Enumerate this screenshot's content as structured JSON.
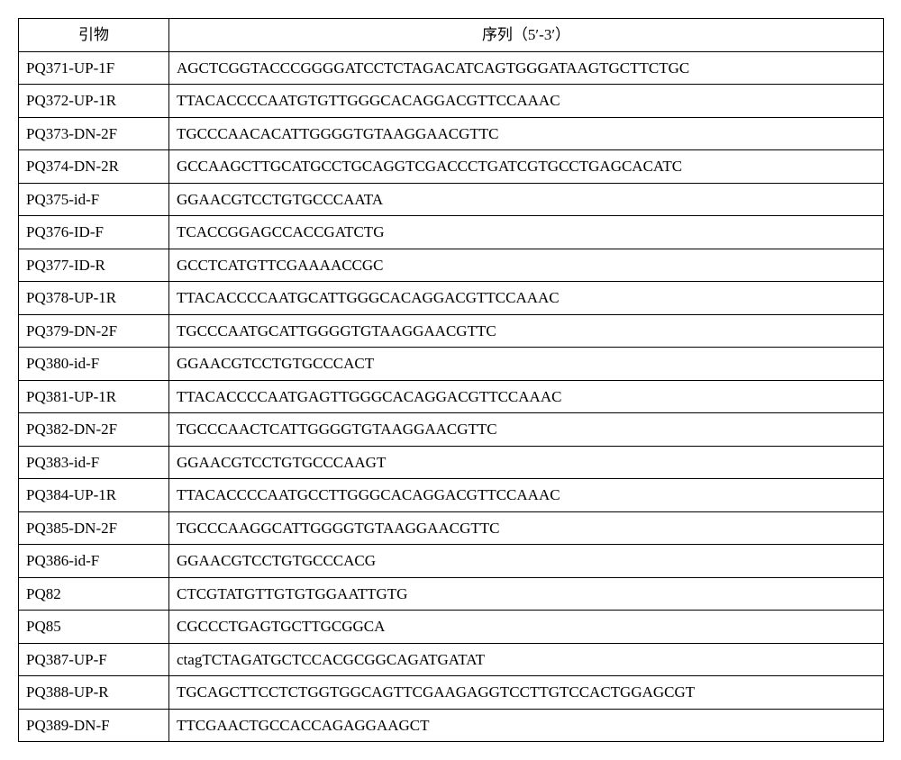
{
  "header": {
    "primerLabel": "引物",
    "sequenceLabel": "序列（5′-3′）"
  },
  "rows": [
    {
      "primer": "PQ371-UP-1F",
      "sequence": "AGCTCGGTACCCGGGGATCCTCTAGACATCAGTGGGATAAGTGCTTCTGC"
    },
    {
      "primer": "PQ372-UP-1R",
      "sequence": "TTACACCCCAATGTGTTGGGCACAGGACGTTCCAAAC"
    },
    {
      "primer": "PQ373-DN-2F",
      "sequence": "TGCCCAACACATTGGGGTGTAAGGAACGTTC"
    },
    {
      "primer": "PQ374-DN-2R",
      "sequence": "GCCAAGCTTGCATGCCTGCAGGTCGACCCTGATCGTGCCTGAGCACATC"
    },
    {
      "primer": "PQ375-id-F",
      "sequence": "GGAACGTCCTGTGCCCAATA"
    },
    {
      "primer": "PQ376-ID-F",
      "sequence": "TCACCGGAGCCACCGATCTG"
    },
    {
      "primer": "PQ377-ID-R",
      "sequence": "GCCTCATGTTCGAAAACCGC"
    },
    {
      "primer": "PQ378-UP-1R",
      "sequence": "TTACACCCCAATGCATTGGGCACAGGACGTTCCAAAC"
    },
    {
      "primer": "PQ379-DN-2F",
      "sequence": "TGCCCAATGCATTGGGGTGTAAGGAACGTTC"
    },
    {
      "primer": "PQ380-id-F",
      "sequence": "GGAACGTCCTGTGCCCACT"
    },
    {
      "primer": "PQ381-UP-1R",
      "sequence": "TTACACCCCAATGAGTTGGGCACAGGACGTTCCAAAC"
    },
    {
      "primer": "PQ382-DN-2F",
      "sequence": "TGCCCAACTCATTGGGGTGTAAGGAACGTTC"
    },
    {
      "primer": "PQ383-id-F",
      "sequence": "GGAACGTCCTGTGCCCAAGT"
    },
    {
      "primer": "PQ384-UP-1R",
      "sequence": "TTACACCCCAATGCCTTGGGCACAGGACGTTCCAAAC"
    },
    {
      "primer": "PQ385-DN-2F",
      "sequence": "TGCCCAAGGCATTGGGGTGTAAGGAACGTTC"
    },
    {
      "primer": "PQ386-id-F",
      "sequence": "GGAACGTCCTGTGCCCACG"
    },
    {
      "primer": "PQ82",
      "sequence": "CTCGTATGTTGTGTGGAATTGTG"
    },
    {
      "primer": "PQ85",
      "sequence": "CGCCCTGAGTGCTTGCGGCA"
    },
    {
      "primer": "PQ387-UP-F",
      "sequence": "ctagTCTAGATGCTCCACGCGGCAGATGATAT"
    },
    {
      "primer": "PQ388-UP-R",
      "sequence": "TGCAGCTTCCTCTGGTGGCAGTTCGAAGAGGTCCTTGTCCACTGGAGCGT"
    },
    {
      "primer": "PQ389-DN-F",
      "sequence": "TTCGAACTGCCACCAGAGGAAGCT"
    }
  ]
}
